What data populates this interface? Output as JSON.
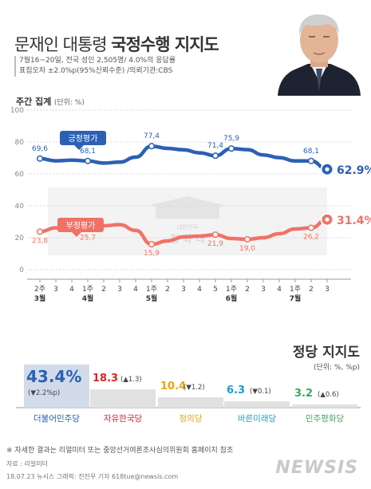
{
  "header": {
    "title_light": "문재인 대통령",
    "title_bold": "국정수행 지지도",
    "info_line1": "7월16~20일, 전국 성인 2,505명/ 4.0%의 응답률",
    "info_line2": "표집오차 ±2.0%p(95%신뢰수준) /의뢰기관:CBS"
  },
  "section": {
    "agg_label": "주간 집계",
    "agg_unit": "(단위: %)"
  },
  "watermark": {
    "text_small": "대한민국",
    "text_big": "청 와 대"
  },
  "chart_data": [
    {
      "type": "line",
      "title": "주간 집계",
      "ylim": [
        0,
        100
      ],
      "yticks": [
        "0",
        "20",
        "40",
        "60",
        "80",
        "100"
      ],
      "categories": [
        "2주",
        "3",
        "4",
        "1주",
        "2",
        "3",
        "4",
        "1주",
        "2",
        "3",
        "4",
        "5",
        "1주",
        "2",
        "3",
        "4",
        "1주",
        "2",
        "3"
      ],
      "month_labels": [
        {
          "index": 0,
          "label": "3월"
        },
        {
          "index": 3,
          "label": "4월"
        },
        {
          "index": 7,
          "label": "5월"
        },
        {
          "index": 12,
          "label": "6월"
        },
        {
          "index": 16,
          "label": "7월"
        }
      ],
      "grid": true,
      "series": [
        {
          "name": "긍정평가",
          "color": "#2b60b5",
          "values": [
            69.6,
            68.2,
            68.6,
            68.1,
            66.8,
            67.4,
            70.5,
            77.4,
            76.0,
            75.1,
            73.2,
            71.4,
            75.9,
            75.2,
            71.9,
            70.2,
            68.1,
            68.1,
            62.9
          ],
          "labels": [
            {
              "index": 0,
              "text": "69,6"
            },
            {
              "index": 3,
              "text": "68,1"
            },
            {
              "index": 7,
              "text": "77,4"
            },
            {
              "index": 11,
              "text": "71,4"
            },
            {
              "index": 12,
              "text": "75,9"
            },
            {
              "index": 17,
              "text": "68,1"
            }
          ],
          "final_label": "62.9%"
        },
        {
          "name": "부정평가",
          "color": "#f07267",
          "values": [
            23.8,
            26.2,
            25.6,
            25.7,
            27.5,
            28.2,
            24.6,
            15.9,
            18.0,
            20.5,
            21.0,
            21.9,
            19.5,
            19.0,
            20.0,
            22.5,
            25.5,
            26.2,
            31.4
          ],
          "labels": [
            {
              "index": 0,
              "text": "23,8"
            },
            {
              "index": 3,
              "text": "25,7"
            },
            {
              "index": 7,
              "text": "15,9"
            },
            {
              "index": 11,
              "text": "21,9"
            },
            {
              "index": 13,
              "text": "19,0"
            },
            {
              "index": 17,
              "text": "26,2"
            }
          ],
          "final_label": "31.4%"
        }
      ]
    },
    {
      "type": "bar",
      "title": "정당 지지도",
      "unit": "(단위: %, %p)",
      "categories": [
        "더불어민주당",
        "자유한국당",
        "정의당",
        "바른미래당",
        "민주평화당"
      ],
      "values": [
        43.4,
        18.3,
        10.4,
        6.3,
        3.2
      ],
      "value_labels": [
        "43.4%",
        "18.3",
        "10.4",
        "6.3",
        "3.2"
      ],
      "changes": [
        "(▼2.2%p)",
        "(▲1.3)",
        "(▼1.2)",
        "(▼0.1)",
        "(▲0.6)"
      ],
      "colors": [
        "#2b60b5",
        "#d9242b",
        "#e5a614",
        "#1f9bc9",
        "#3daa5a"
      ]
    }
  ],
  "footer": {
    "note": "※ 자세한 결과는 리얼미터 또는 중앙선거여론조사심의위원회 홈페이지 참조",
    "source": "자료 : 리얼미터",
    "credit": "18.07.23 뉴시스 그래픽: 전진우 기자 618tue@newsis.com",
    "logo": "NEWSIS"
  }
}
